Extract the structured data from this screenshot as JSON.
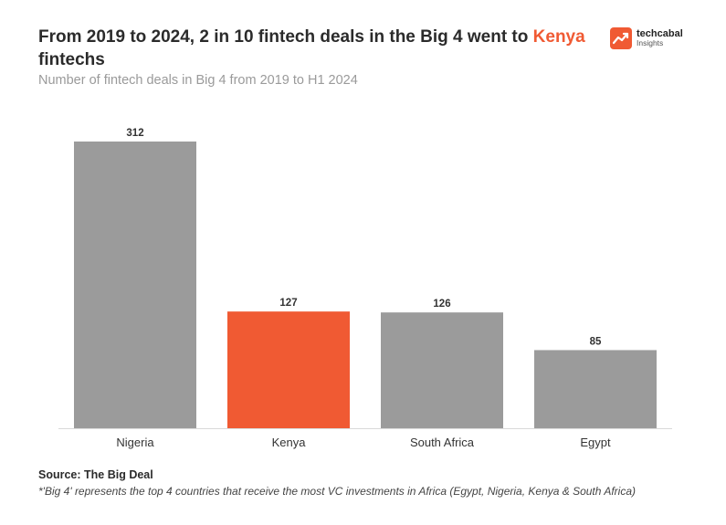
{
  "header": {
    "title_prefix": "From 2019 to 2024, 2 in 10 fintech deals in the Big 4 went to ",
    "title_highlight": "Kenya",
    "title_suffix": " fintechs",
    "subtitle": "Number of fintech deals in Big 4 from 2019 to H1 2024"
  },
  "logo": {
    "name": "techcabal",
    "sub": "Insights",
    "icon": "trend-arrow-icon"
  },
  "footer": {
    "source": "Source: The Big Deal",
    "note": "*'Big 4' represents the top 4 countries that receive the most VC investments in Africa (Egypt, Nigeria, Kenya & South Africa)"
  },
  "colors": {
    "bar_default": "#9b9b9b",
    "bar_highlight": "#f05a33",
    "accent": "#f05a33",
    "text": "#2b2b2b",
    "baseline": "#d9d9d9"
  },
  "chart_data": {
    "type": "bar",
    "title": "From 2019 to 2024, 2 in 10 fintech deals in the Big 4 went to Kenya fintechs",
    "subtitle": "Number of fintech deals in Big 4 from 2019 to H1 2024",
    "categories": [
      "Nigeria",
      "Kenya",
      "South Africa",
      "Egypt"
    ],
    "values": [
      312,
      127,
      126,
      85
    ],
    "highlight": "Kenya",
    "xlabel": "",
    "ylabel": "",
    "ylim": [
      0,
      312
    ],
    "grid": false,
    "data_labels": true
  }
}
